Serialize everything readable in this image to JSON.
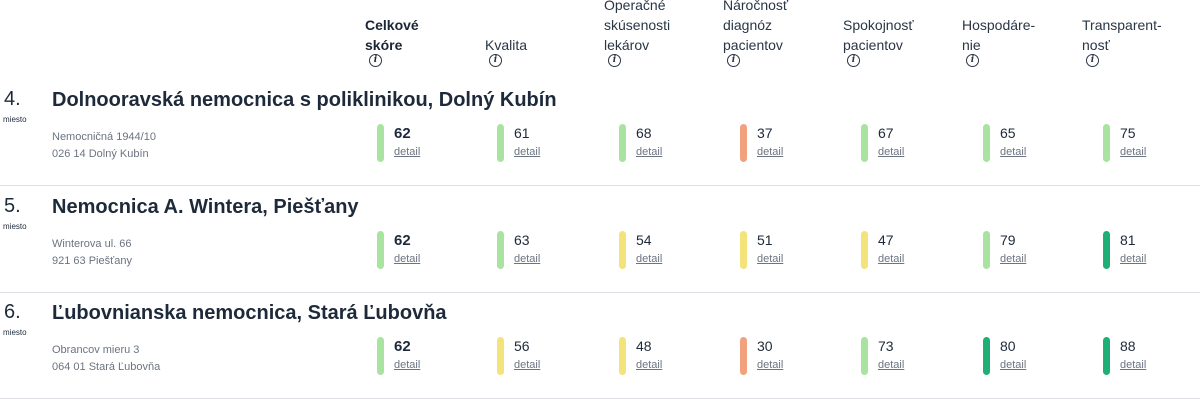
{
  "colors": {
    "light_green": "#a9e3a0",
    "yellow": "#f3e37a",
    "orange": "#f2a17f",
    "dark_green": "#1fae76"
  },
  "header": {
    "columns": [
      {
        "lines": [
          "Celkové",
          "skóre"
        ],
        "icon": "info-icon"
      },
      {
        "lines": [
          "Kvalita"
        ],
        "icon": "info-icon"
      },
      {
        "lines": [
          "Operačné",
          "skúsenosti",
          "lekárov"
        ],
        "icon": "info-icon"
      },
      {
        "lines": [
          "Náročnosť",
          "diagnóz",
          "pacientov"
        ],
        "icon": "info-icon"
      },
      {
        "lines": [
          "Spokojnosť",
          "pacientov"
        ],
        "icon": "info-icon"
      },
      {
        "lines": [
          "Hospodáre-",
          "nie"
        ],
        "icon": "info-icon"
      },
      {
        "lines": [
          "Transparent-",
          "nosť"
        ],
        "icon": "info-icon"
      }
    ]
  },
  "rows": [
    {
      "rank": "4.",
      "rank_label": "miesto",
      "name": "Dolnooravská nemocnica s poliklinikou, Dolný Kubín",
      "address": [
        "Nemocničná 1944/10",
        "026 14 Dolný Kubín"
      ],
      "metrics": [
        {
          "value": "62",
          "detail": "detail",
          "color": "light_green"
        },
        {
          "value": "61",
          "detail": "detail",
          "color": "light_green"
        },
        {
          "value": "68",
          "detail": "detail",
          "color": "light_green"
        },
        {
          "value": "37",
          "detail": "detail",
          "color": "orange"
        },
        {
          "value": "67",
          "detail": "detail",
          "color": "light_green"
        },
        {
          "value": "65",
          "detail": "detail",
          "color": "light_green"
        },
        {
          "value": "75",
          "detail": "detail",
          "color": "light_green"
        }
      ]
    },
    {
      "rank": "5.",
      "rank_label": "miesto",
      "name": "Nemocnica A. Wintera, Piešťany",
      "address": [
        "Winterova ul. 66",
        "921 63 Piešťany"
      ],
      "metrics": [
        {
          "value": "62",
          "detail": "detail",
          "color": "light_green"
        },
        {
          "value": "63",
          "detail": "detail",
          "color": "light_green"
        },
        {
          "value": "54",
          "detail": "detail",
          "color": "yellow"
        },
        {
          "value": "51",
          "detail": "detail",
          "color": "yellow"
        },
        {
          "value": "47",
          "detail": "detail",
          "color": "yellow"
        },
        {
          "value": "79",
          "detail": "detail",
          "color": "light_green"
        },
        {
          "value": "81",
          "detail": "detail",
          "color": "dark_green"
        }
      ]
    },
    {
      "rank": "6.",
      "rank_label": "miesto",
      "name": "Ľubovnianska nemocnica, Stará Ľubovňa",
      "address": [
        "Obrancov mieru 3",
        "064 01 Stará Ľubovňa"
      ],
      "metrics": [
        {
          "value": "62",
          "detail": "detail",
          "color": "light_green"
        },
        {
          "value": "56",
          "detail": "detail",
          "color": "yellow"
        },
        {
          "value": "48",
          "detail": "detail",
          "color": "yellow"
        },
        {
          "value": "30",
          "detail": "detail",
          "color": "orange"
        },
        {
          "value": "73",
          "detail": "detail",
          "color": "light_green"
        },
        {
          "value": "80",
          "detail": "detail",
          "color": "dark_green"
        },
        {
          "value": "88",
          "detail": "detail",
          "color": "dark_green"
        }
      ]
    }
  ]
}
